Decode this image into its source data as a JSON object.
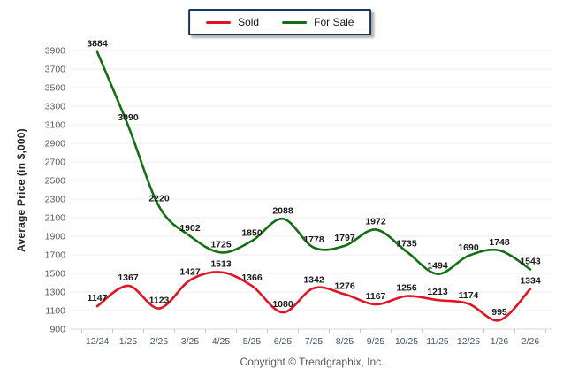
{
  "chart_data": {
    "type": "line",
    "x": [
      "12/24",
      "1/25",
      "2/25",
      "3/25",
      "4/25",
      "5/25",
      "6/25",
      "7/25",
      "8/25",
      "9/25",
      "10/25",
      "11/25",
      "12/25",
      "1/26",
      "2/26"
    ],
    "series": [
      {
        "name": "Sold",
        "color": "#e11423",
        "values": [
          1147,
          1367,
          1123,
          1427,
          1513,
          1366,
          1080,
          1342,
          1276,
          1167,
          1256,
          1213,
          1174,
          995,
          1334
        ]
      },
      {
        "name": "For Sale",
        "color": "#146e14",
        "values": [
          3884,
          3090,
          2220,
          1902,
          1725,
          1850,
          2088,
          1778,
          1797,
          1972,
          1735,
          1494,
          1690,
          1748,
          1543
        ]
      }
    ],
    "title": "",
    "xlabel": "",
    "ylabel": "Average Price (in $,000)",
    "ylim": [
      900,
      3900
    ],
    "ytick_step": 200,
    "grid": true,
    "legend_position": "top-center"
  },
  "footer": {
    "copyright": "Copyright © Trendgraphix, Inc."
  },
  "style": {
    "grid_color": "#ececec",
    "axis_line_color": "#d9d9d9",
    "tick_mark_color": "#c6c6c6",
    "ytick_label_color": "#595959",
    "xtick_label_color": "#44546a",
    "data_label_color": "#1a1a1a",
    "legend_border_color": "#17375d"
  }
}
